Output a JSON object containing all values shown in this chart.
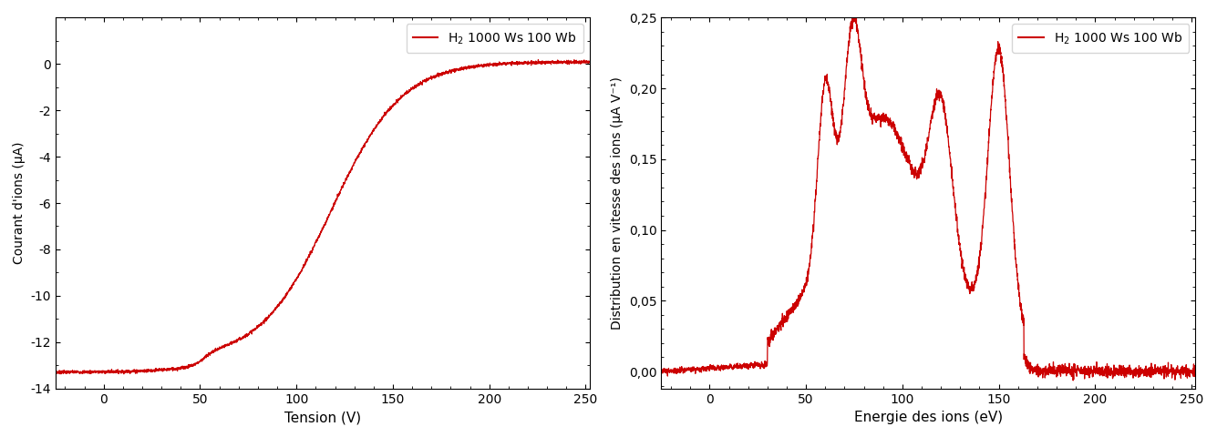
{
  "left_plot": {
    "xlabel": "Tension (V)",
    "ylabel": "Courant d'ions (μA)",
    "legend_label": "H$_2$ 1000 Ws 100 Wb",
    "xlim": [
      -25,
      252
    ],
    "ylim": [
      -14,
      2
    ],
    "xticks": [
      0,
      50,
      100,
      150,
      200,
      250
    ],
    "yticks": [
      0,
      -2,
      -4,
      -6,
      -8,
      -10,
      -12,
      -14
    ],
    "line_color": "#cc0000"
  },
  "right_plot": {
    "xlabel": "Energie des ions (eV)",
    "ylabel": "Distribution en vitesse des ions (μA V⁻¹)",
    "legend_label": "H$_2$ 1000 Ws 100 Wb",
    "xlim": [
      -25,
      252
    ],
    "ylim": [
      -0.012,
      0.25
    ],
    "xticks": [
      0,
      50,
      100,
      150,
      200,
      250
    ],
    "yticks": [
      0.0,
      0.05,
      0.1,
      0.15,
      0.2,
      0.25
    ],
    "line_color": "#cc0000"
  }
}
